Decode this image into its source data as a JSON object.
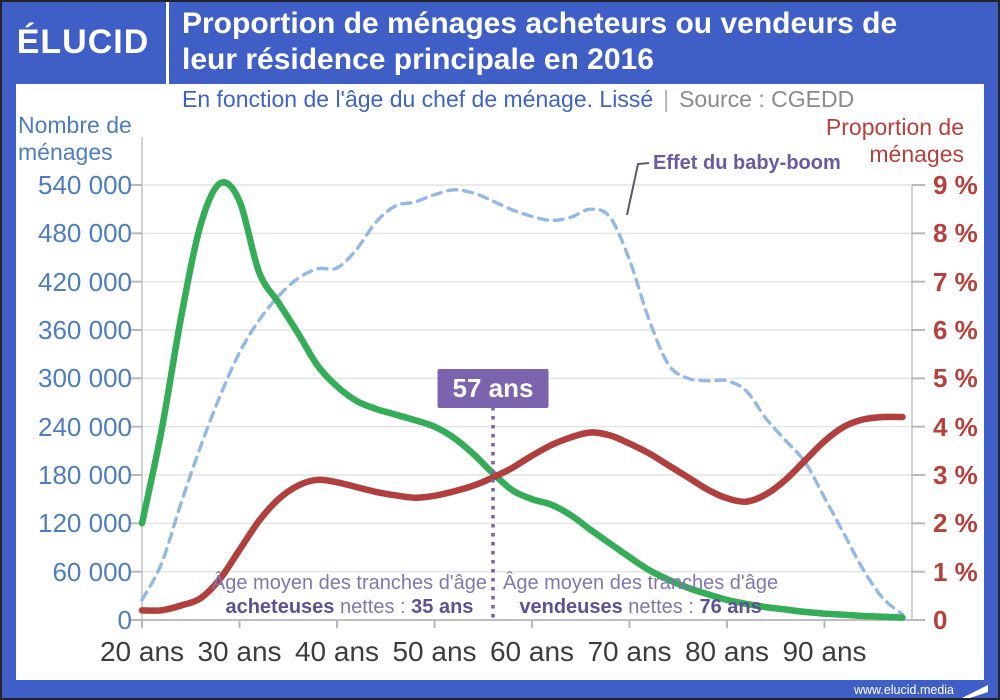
{
  "header": {
    "logo": "ÉLUCID",
    "title_line1": "Proportion de ménages acheteurs ou vendeurs de",
    "title_line2": "leur résidence principale en 2016"
  },
  "subtitle": {
    "main": "En fonction de l'âge du chef de ménage. Lissé",
    "separator": "|",
    "source": "Source : CGEDD"
  },
  "footer": {
    "url": "www.elucid.media"
  },
  "colors": {
    "header_blue": "#3f5ec6",
    "left_axis_blue": "#4d7dbd",
    "right_axis_red": "#b5403c",
    "purple_accent": "#7c63ad",
    "grid_gray": "#e4e4e6"
  },
  "chart_data": {
    "type": "line",
    "title": "Proportion de ménages acheteurs ou vendeurs de leur résidence principale en 2016",
    "subtitle": "En fonction de l'âge du chef de ménage. Lissé | Source : CGEDD",
    "grid": true,
    "legend": "none",
    "x_axis": {
      "unit": "ans",
      "range": [
        20,
        99
      ],
      "tick_values": [
        20,
        30,
        40,
        50,
        60,
        70,
        80,
        90
      ],
      "tick_labels": [
        "20 ans",
        "30 ans",
        "40 ans",
        "50 ans",
        "60 ans",
        "70 ans",
        "80 ans",
        "90 ans"
      ]
    },
    "y_left": {
      "title_line1": "Nombre de",
      "title_line2": "ménages",
      "range": [
        0,
        540000
      ],
      "tick_values": [
        540000,
        480000,
        420000,
        360000,
        300000,
        240000,
        180000,
        120000,
        60000,
        0
      ],
      "tick_labels": [
        "540 000",
        "480 000",
        "420 000",
        "360 000",
        "300 000",
        "240 000",
        "180 000",
        "120 000",
        "60 000",
        "0"
      ]
    },
    "y_right": {
      "title_line1": "Proportion de",
      "title_line2": "ménages",
      "range": [
        0,
        9
      ],
      "tick_values": [
        9,
        8,
        7,
        6,
        5,
        4,
        3,
        2,
        1,
        0
      ],
      "tick_labels": [
        "9 %",
        "8 %",
        "7 %",
        "6 %",
        "5 %",
        "4 %",
        "3 %",
        "2 %",
        "1 %",
        "0"
      ]
    },
    "ages": [
      20,
      22,
      24,
      26,
      28,
      30,
      32,
      34,
      36,
      38,
      40,
      42,
      44,
      46,
      48,
      50,
      52,
      54,
      56,
      58,
      60,
      62,
      64,
      66,
      68,
      70,
      72,
      74,
      76,
      78,
      80,
      82,
      84,
      86,
      88,
      90,
      92,
      94,
      96,
      98
    ],
    "series": [
      {
        "name": "effet-du-baby-boom",
        "label": "Effet du baby-boom",
        "axis": "left",
        "style": "dashed",
        "color": "#93b8e4",
        "values": [
          25000,
          70000,
          145000,
          215000,
          278000,
          332000,
          372000,
          402000,
          424000,
          436000,
          437000,
          460000,
          494000,
          514000,
          519000,
          528000,
          534000,
          530000,
          520000,
          509000,
          501000,
          496000,
          500000,
          510000,
          500000,
          447000,
          373000,
          317000,
          300000,
          297000,
          297000,
          284000,
          250000,
          223000,
          196000,
          152000,
          107000,
          62000,
          27000,
          7000
        ]
      },
      {
        "name": "nombre-de-menages",
        "label": "Nombre de ménages",
        "axis": "left",
        "style": "solid",
        "color": "#35ad58",
        "values": [
          120000,
          235000,
          375000,
          490000,
          542000,
          520000,
          432000,
          394000,
          356000,
          316000,
          290000,
          272000,
          262000,
          255000,
          248000,
          240000,
          226000,
          206000,
          182000,
          161000,
          150000,
          143000,
          130000,
          112000,
          95000,
          78000,
          62000,
          50000,
          40000,
          32000,
          25000,
          20000,
          16000,
          13000,
          10000,
          8000,
          6500,
          5000,
          4000,
          3000
        ]
      },
      {
        "name": "proportion-de-menages",
        "label": "Proportion de ménages",
        "axis": "right",
        "style": "solid",
        "color": "#b0403e",
        "values": [
          0.2,
          0.2,
          0.3,
          0.45,
          0.85,
          1.45,
          2.05,
          2.5,
          2.78,
          2.9,
          2.85,
          2.75,
          2.65,
          2.58,
          2.53,
          2.57,
          2.66,
          2.78,
          2.95,
          3.15,
          3.4,
          3.62,
          3.78,
          3.88,
          3.82,
          3.65,
          3.45,
          3.2,
          2.95,
          2.7,
          2.52,
          2.45,
          2.6,
          2.9,
          3.3,
          3.7,
          4.0,
          4.15,
          4.2,
          4.2
        ]
      }
    ],
    "annotations": {
      "baby_boom_label": "Effet du baby-boom",
      "age_marker": "57 ans",
      "buyers_note": {
        "line1": "Âge moyen des tranches d'âge",
        "bold_start": "acheteuses",
        "middle": " nettes : ",
        "bold_end": "35 ans"
      },
      "sellers_note": {
        "line1": "Âge moyen des tranches d'âge",
        "bold_start": "vendeuses",
        "middle": " nettes : ",
        "bold_end": "76 ans"
      }
    }
  }
}
